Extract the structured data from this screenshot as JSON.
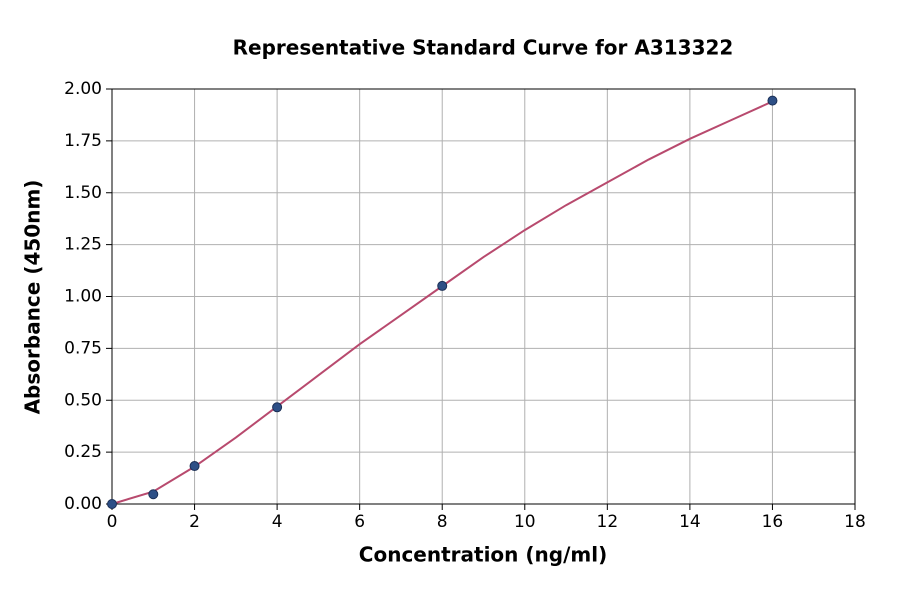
{
  "chart_data": {
    "type": "scatter",
    "title": "Representative Standard Curve for A313322",
    "x_label": "Concentration (ng/ml)",
    "y_label": "Absorbance (450nm)",
    "x": [
      0,
      1,
      2,
      4,
      8,
      16
    ],
    "values": [
      0,
      0.047,
      0.183,
      0.466,
      1.051,
      1.944
    ],
    "color": "#2d4f86",
    "curve": {
      "color": "#b84a6e",
      "x": [
        0,
        1,
        2,
        3,
        4,
        5,
        6,
        7,
        8,
        9,
        10,
        11,
        12,
        13,
        14,
        15,
        16
      ],
      "values": [
        0,
        0.06,
        0.18,
        0.32,
        0.47,
        0.62,
        0.77,
        0.91,
        1.05,
        1.19,
        1.32,
        1.44,
        1.55,
        1.66,
        1.76,
        1.85,
        1.94
      ]
    },
    "xlim": [
      0,
      18
    ],
    "xticks": [
      0,
      2,
      4,
      6,
      8,
      10,
      12,
      14,
      16,
      18
    ],
    "ylim": [
      0,
      2
    ],
    "yticks": [
      {
        "value": 0,
        "label": "0.00"
      },
      {
        "value": 0.25,
        "label": "0.25"
      },
      {
        "value": 0.5,
        "label": "0.50"
      },
      {
        "value": 0.75,
        "label": "0.75"
      },
      {
        "value": 1,
        "label": "1.00"
      },
      {
        "value": 1.25,
        "label": "1.25"
      },
      {
        "value": 1.5,
        "label": "1.50"
      },
      {
        "value": 1.75,
        "label": "1.75"
      },
      {
        "value": 2,
        "label": "2.00"
      }
    ],
    "grid": true
  }
}
